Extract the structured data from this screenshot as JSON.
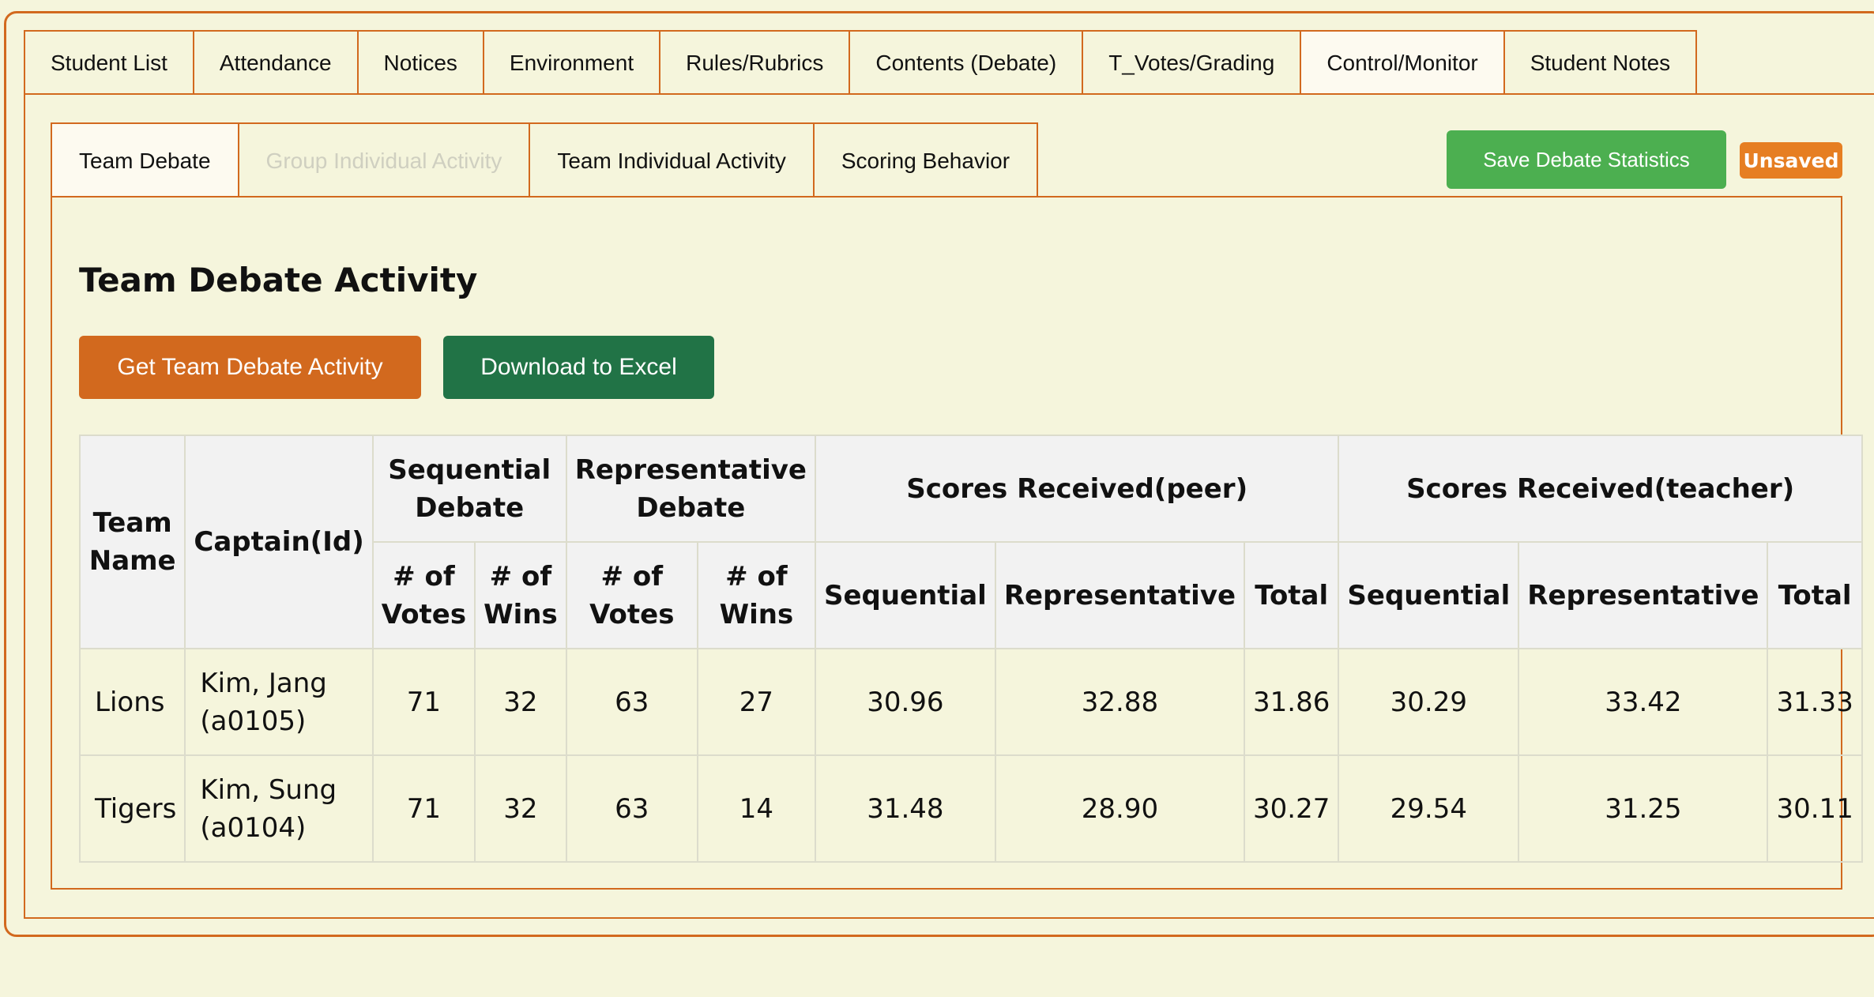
{
  "top_tabs": [
    "Student List",
    "Attendance",
    "Notices",
    "Environment",
    "Rules/Rubrics",
    "Contents (Debate)",
    "T_Votes/Grading",
    "Control/Monitor",
    "Student Notes"
  ],
  "sub_tabs": [
    "Team Debate",
    "Group Individual Activity",
    "Team Individual Activity",
    "Scoring Behavior"
  ],
  "save_button": "Save Debate Statistics",
  "status_badge": "Unsaved",
  "page_title": "Team Debate Activity",
  "get_button": "Get Team Debate Activity",
  "download_button": "Download to Excel",
  "table": {
    "headers": {
      "team_name": "Team Name",
      "captain": "Captain(Id)",
      "sequential_debate": "Sequential Debate",
      "representative_debate": "Representative Debate",
      "scores_peer": "Scores Received(peer)",
      "scores_teacher": "Scores Received(teacher)",
      "votes": "# of Votes",
      "wins": "# of Wins",
      "sequential": "Sequential",
      "representative": "Representative",
      "total": "Total"
    },
    "rows": [
      {
        "team": "Lions",
        "captain": "Kim, Jang (a0105)",
        "seq_votes": "71",
        "seq_wins": "32",
        "rep_votes": "63",
        "rep_wins": "27",
        "peer_seq": "30.96",
        "peer_rep": "32.88",
        "peer_total": "31.86",
        "teacher_seq": "30.29",
        "teacher_rep": "33.42",
        "teacher_total": "31.33"
      },
      {
        "team": "Tigers",
        "captain": "Kim, Sung (a0104)",
        "seq_votes": "71",
        "seq_wins": "32",
        "rep_votes": "63",
        "rep_wins": "14",
        "peer_seq": "31.48",
        "peer_rep": "28.90",
        "peer_total": "30.27",
        "teacher_seq": "29.54",
        "teacher_rep": "31.25",
        "teacher_total": "30.11"
      }
    ]
  },
  "colors": {
    "background": "#f5f5dc",
    "accent_border": "#d2691e",
    "save_green": "#4caf50",
    "excel_green": "#217346",
    "badge_orange": "#e67e22"
  }
}
